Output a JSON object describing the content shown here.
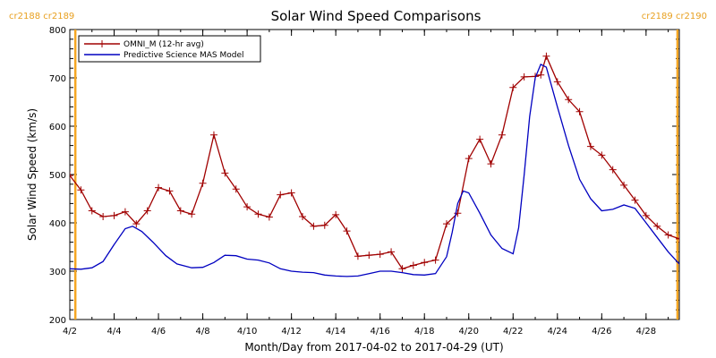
{
  "chart_data": {
    "type": "line",
    "title": "Solar Wind Speed Comparisons",
    "xlabel": "Month/Day from 2017-04-02 to 2017-04-29 (UT)",
    "ylabel": "Solar Wind Speed (km/s)",
    "xlim": [
      "2017-04-02",
      "2017-04-29 12:00"
    ],
    "ylim": [
      200,
      800
    ],
    "x_ticks": [
      "4/2",
      "4/4",
      "4/6",
      "4/8",
      "4/10",
      "4/12",
      "4/14",
      "4/16",
      "4/18",
      "4/20",
      "4/22",
      "4/24",
      "4/26",
      "4/28"
    ],
    "x_tick_dates": [
      "2017-04-02",
      "2017-04-04",
      "2017-04-06",
      "2017-04-08",
      "2017-04-10",
      "2017-04-12",
      "2017-04-14",
      "2017-04-16",
      "2017-04-18",
      "2017-04-20",
      "2017-04-22",
      "2017-04-24",
      "2017-04-26",
      "2017-04-28"
    ],
    "y_ticks": [
      200,
      300,
      400,
      500,
      600,
      700,
      800
    ],
    "legend": {
      "placement": "top-left"
    },
    "carrington_labels": {
      "left": "cr2188 cr2189",
      "right": "cr2189 cr2190",
      "left_date": "2017-04-02 06:00",
      "right_date": "2017-04-29 10:00",
      "color": "#f5a623"
    },
    "series": [
      {
        "name": "OMNI_M (12-hr avg)",
        "color": "#a00000",
        "marker": "plus",
        "points": [
          [
            "2017-04-02 00:00",
            498
          ],
          [
            "2017-04-02 12:00",
            468
          ],
          [
            "2017-04-03 00:00",
            425
          ],
          [
            "2017-04-03 12:00",
            413
          ],
          [
            "2017-04-04 00:00",
            415
          ],
          [
            "2017-04-04 12:00",
            423
          ],
          [
            "2017-04-05 00:00",
            398
          ],
          [
            "2017-04-05 12:00",
            425
          ],
          [
            "2017-04-06 00:00",
            473
          ],
          [
            "2017-04-06 12:00",
            466
          ],
          [
            "2017-04-07 00:00",
            425
          ],
          [
            "2017-04-07 12:00",
            418
          ],
          [
            "2017-04-08 00:00",
            482
          ],
          [
            "2017-04-08 12:00",
            582
          ],
          [
            "2017-04-09 00:00",
            503
          ],
          [
            "2017-04-09 12:00",
            470
          ],
          [
            "2017-04-10 00:00",
            433
          ],
          [
            "2017-04-10 12:00",
            418
          ],
          [
            "2017-04-11 00:00",
            412
          ],
          [
            "2017-04-11 12:00",
            458
          ],
          [
            "2017-04-12 00:00",
            462
          ],
          [
            "2017-04-12 12:00",
            413
          ],
          [
            "2017-04-13 00:00",
            393
          ],
          [
            "2017-04-13 12:00",
            395
          ],
          [
            "2017-04-14 00:00",
            417
          ],
          [
            "2017-04-14 12:00",
            383
          ],
          [
            "2017-04-15 00:00",
            331
          ],
          [
            "2017-04-15 12:00",
            333
          ],
          [
            "2017-04-16 00:00",
            335
          ],
          [
            "2017-04-16 12:00",
            340
          ],
          [
            "2017-04-17 00:00",
            305
          ],
          [
            "2017-04-17 12:00",
            312
          ],
          [
            "2017-04-18 00:00",
            318
          ],
          [
            "2017-04-18 12:00",
            323
          ],
          [
            "2017-04-19 00:00",
            398
          ],
          [
            "2017-04-19 12:00",
            420
          ],
          [
            "2017-04-20 00:00",
            533
          ],
          [
            "2017-04-20 12:00",
            573
          ],
          [
            "2017-04-21 00:00",
            522
          ],
          [
            "2017-04-21 12:00",
            582
          ],
          [
            "2017-04-22 00:00",
            680
          ],
          [
            "2017-04-22 12:00",
            702
          ],
          [
            "2017-04-23 00:00",
            703
          ],
          [
            "2017-04-23 06:00",
            706
          ],
          [
            "2017-04-23 12:00",
            745
          ],
          [
            "2017-04-24 00:00",
            692
          ],
          [
            "2017-04-24 12:00",
            655
          ],
          [
            "2017-04-25 00:00",
            630
          ],
          [
            "2017-04-25 12:00",
            558
          ],
          [
            "2017-04-26 00:00",
            540
          ],
          [
            "2017-04-26 12:00",
            510
          ],
          [
            "2017-04-27 00:00",
            478
          ],
          [
            "2017-04-27 12:00",
            447
          ],
          [
            "2017-04-28 00:00",
            415
          ],
          [
            "2017-04-28 12:00",
            393
          ],
          [
            "2017-04-29 00:00",
            375
          ],
          [
            "2017-04-29 12:00",
            367
          ]
        ]
      },
      {
        "name": "Predictive Science MAS Model",
        "color": "#0000c0",
        "marker": "none",
        "points": [
          [
            "2017-04-02 00:00",
            305
          ],
          [
            "2017-04-02 12:00",
            304
          ],
          [
            "2017-04-03 00:00",
            307
          ],
          [
            "2017-04-03 12:00",
            320
          ],
          [
            "2017-04-04 00:00",
            355
          ],
          [
            "2017-04-04 12:00",
            388
          ],
          [
            "2017-04-04 20:00",
            393
          ],
          [
            "2017-04-05 06:00",
            382
          ],
          [
            "2017-04-05 18:00",
            360
          ],
          [
            "2017-04-06 08:00",
            332
          ],
          [
            "2017-04-06 20:00",
            315
          ],
          [
            "2017-04-07 12:00",
            307
          ],
          [
            "2017-04-08 00:00",
            308
          ],
          [
            "2017-04-08 12:00",
            318
          ],
          [
            "2017-04-09 00:00",
            333
          ],
          [
            "2017-04-09 12:00",
            332
          ],
          [
            "2017-04-10 00:00",
            325
          ],
          [
            "2017-04-10 12:00",
            323
          ],
          [
            "2017-04-11 00:00",
            317
          ],
          [
            "2017-04-11 12:00",
            305
          ],
          [
            "2017-04-12 00:00",
            300
          ],
          [
            "2017-04-12 12:00",
            298
          ],
          [
            "2017-04-13 00:00",
            297
          ],
          [
            "2017-04-13 12:00",
            292
          ],
          [
            "2017-04-14 00:00",
            290
          ],
          [
            "2017-04-14 12:00",
            289
          ],
          [
            "2017-04-15 00:00",
            290
          ],
          [
            "2017-04-15 12:00",
            295
          ],
          [
            "2017-04-16 00:00",
            300
          ],
          [
            "2017-04-16 12:00",
            300
          ],
          [
            "2017-04-17 00:00",
            297
          ],
          [
            "2017-04-17 12:00",
            293
          ],
          [
            "2017-04-18 00:00",
            292
          ],
          [
            "2017-04-18 12:00",
            295
          ],
          [
            "2017-04-19 00:00",
            330
          ],
          [
            "2017-04-19 06:00",
            380
          ],
          [
            "2017-04-19 12:00",
            440
          ],
          [
            "2017-04-19 18:00",
            466
          ],
          [
            "2017-04-20 00:00",
            462
          ],
          [
            "2017-04-20 12:00",
            420
          ],
          [
            "2017-04-21 00:00",
            375
          ],
          [
            "2017-04-21 12:00",
            347
          ],
          [
            "2017-04-22 00:00",
            336
          ],
          [
            "2017-04-22 06:00",
            390
          ],
          [
            "2017-04-22 12:00",
            500
          ],
          [
            "2017-04-22 18:00",
            620
          ],
          [
            "2017-04-23 00:00",
            700
          ],
          [
            "2017-04-23 06:00",
            728
          ],
          [
            "2017-04-23 12:00",
            722
          ],
          [
            "2017-04-24 00:00",
            640
          ],
          [
            "2017-04-24 12:00",
            560
          ],
          [
            "2017-04-25 00:00",
            490
          ],
          [
            "2017-04-25 12:00",
            450
          ],
          [
            "2017-04-26 00:00",
            425
          ],
          [
            "2017-04-26 12:00",
            428
          ],
          [
            "2017-04-27 00:00",
            437
          ],
          [
            "2017-04-27 12:00",
            430
          ],
          [
            "2017-04-28 00:00",
            400
          ],
          [
            "2017-04-28 12:00",
            370
          ],
          [
            "2017-04-29 00:00",
            340
          ],
          [
            "2017-04-29 12:00",
            315
          ],
          [
            "2017-04-30 00:00",
            310
          ]
        ]
      }
    ]
  }
}
